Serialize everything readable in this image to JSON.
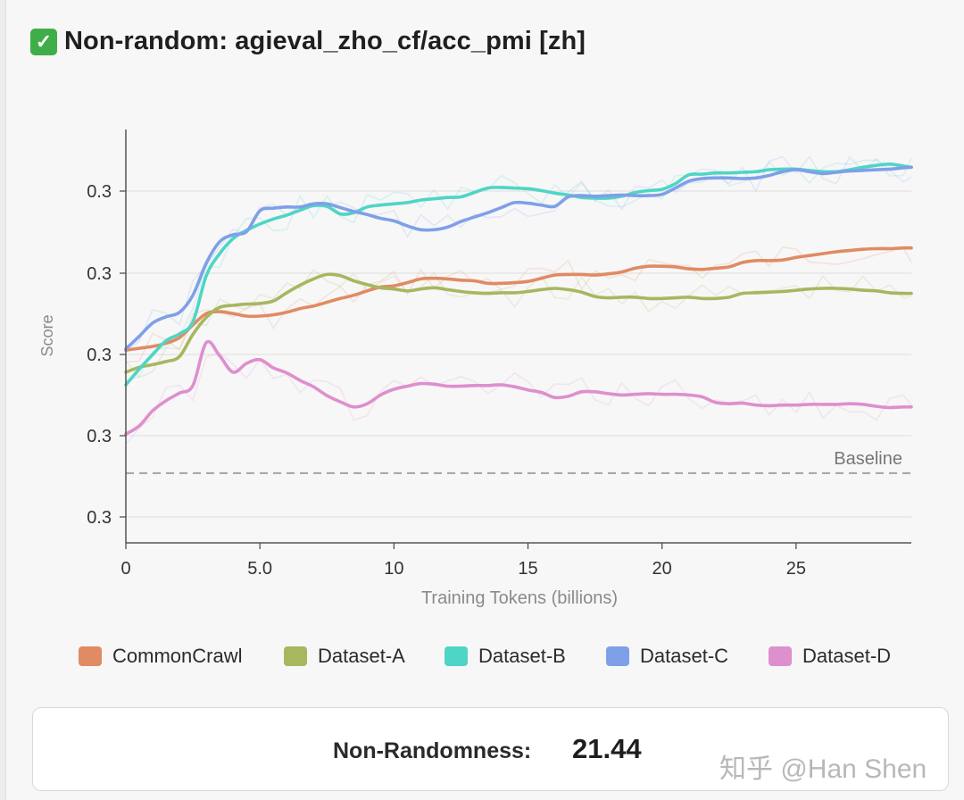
{
  "header": {
    "check_icon": "✓",
    "title": "Non-random: agieval_zho_cf/acc_pmi [zh]"
  },
  "chart_data": {
    "type": "line",
    "title": "Non-random: agieval_zho_cf/acc_pmi [zh]",
    "xlabel": "Training Tokens (billions)",
    "ylabel": "Score",
    "x_ticks": [
      "0",
      "5.0",
      "10",
      "15",
      "20",
      "25"
    ],
    "y_ticks": [
      "0.3",
      "0.3",
      "0.3",
      "0.3",
      "0.3"
    ],
    "xlim": [
      0,
      29.3
    ],
    "ylim": [
      0.2355,
      0.2975
    ],
    "grid": true,
    "legend_position": "bottom",
    "baseline": {
      "label": "Baseline",
      "value": 0.244
    },
    "x": [
      0,
      0.5,
      1,
      1.5,
      2,
      2.5,
      3,
      3.5,
      4,
      4.5,
      5,
      5.5,
      6,
      6.5,
      7,
      7.5,
      8,
      8.5,
      9,
      9.5,
      10,
      10.5,
      11,
      11.5,
      12,
      12.5,
      13,
      13.5,
      14,
      14.5,
      15,
      15.5,
      16,
      16.5,
      17,
      17.5,
      18,
      18.5,
      19,
      19.5,
      20,
      20.5,
      21,
      21.5,
      22,
      22.5,
      23,
      23.5,
      24,
      24.5,
      25,
      25.5,
      26,
      26.5,
      27,
      27.5,
      28,
      28.5,
      29,
      29.3
    ],
    "series": [
      {
        "name": "CommonCrawl",
        "color": "#e08b63",
        "values": [
          0.2635,
          0.2638,
          0.2641,
          0.2646,
          0.2655,
          0.2675,
          0.2693,
          0.2696,
          0.2693,
          0.2689,
          0.2689,
          0.2691,
          0.2695,
          0.2701,
          0.2705,
          0.2711,
          0.2717,
          0.2722,
          0.2729,
          0.2735,
          0.2737,
          0.2742,
          0.2748,
          0.2749,
          0.2748,
          0.2746,
          0.2745,
          0.2741,
          0.2741,
          0.2742,
          0.2744,
          0.2749,
          0.2754,
          0.2755,
          0.2755,
          0.2754,
          0.2756,
          0.2759,
          0.2765,
          0.2768,
          0.2768,
          0.2767,
          0.2764,
          0.2763,
          0.2765,
          0.2767,
          0.2774,
          0.2777,
          0.2777,
          0.2778,
          0.2782,
          0.2785,
          0.2788,
          0.2791,
          0.2793,
          0.2795,
          0.2796,
          0.2796,
          0.2797,
          0.2797
        ]
      },
      {
        "name": "Dataset-A",
        "color": "#a6b760",
        "values": [
          0.26,
          0.2608,
          0.2612,
          0.2617,
          0.2625,
          0.266,
          0.2687,
          0.2703,
          0.2706,
          0.2708,
          0.2709,
          0.2713,
          0.2726,
          0.2738,
          0.2748,
          0.2755,
          0.2753,
          0.2745,
          0.2739,
          0.2734,
          0.2732,
          0.2729,
          0.2732,
          0.2734,
          0.2731,
          0.2728,
          0.2726,
          0.2725,
          0.2726,
          0.2726,
          0.2728,
          0.2731,
          0.2733,
          0.2731,
          0.2727,
          0.272,
          0.2718,
          0.2719,
          0.2719,
          0.2717,
          0.2717,
          0.2718,
          0.2719,
          0.2717,
          0.2717,
          0.2719,
          0.2725,
          0.2726,
          0.2727,
          0.2728,
          0.273,
          0.2732,
          0.2733,
          0.2733,
          0.2732,
          0.273,
          0.2729,
          0.2726,
          0.2725,
          0.2725
        ]
      },
      {
        "name": "Dataset-B",
        "color": "#4fd5c5",
        "values": [
          0.258,
          0.2605,
          0.2628,
          0.265,
          0.2661,
          0.268,
          0.2753,
          0.2788,
          0.2812,
          0.2825,
          0.2835,
          0.2843,
          0.2849,
          0.2857,
          0.2864,
          0.2863,
          0.2851,
          0.2853,
          0.2862,
          0.2865,
          0.2867,
          0.2869,
          0.2873,
          0.2875,
          0.2877,
          0.2878,
          0.2885,
          0.2892,
          0.2893,
          0.2892,
          0.2891,
          0.2888,
          0.2884,
          0.2881,
          0.2877,
          0.2876,
          0.2876,
          0.2879,
          0.2885,
          0.2888,
          0.289,
          0.2899,
          0.2913,
          0.2914,
          0.2916,
          0.2916,
          0.2917,
          0.2918,
          0.2921,
          0.2922,
          0.2922,
          0.292,
          0.2918,
          0.2918,
          0.2921,
          0.2925,
          0.2928,
          0.293,
          0.2927,
          0.2925
        ]
      },
      {
        "name": "Dataset-C",
        "color": "#7fa0e8",
        "values": [
          0.2637,
          0.2657,
          0.2678,
          0.2688,
          0.2695,
          0.2722,
          0.2773,
          0.2807,
          0.2818,
          0.2823,
          0.2856,
          0.286,
          0.2862,
          0.2862,
          0.2867,
          0.2867,
          0.2861,
          0.2855,
          0.285,
          0.2844,
          0.284,
          0.2832,
          0.2826,
          0.2826,
          0.283,
          0.2839,
          0.2846,
          0.2853,
          0.2861,
          0.2869,
          0.2868,
          0.2865,
          0.2863,
          0.2878,
          0.288,
          0.2879,
          0.288,
          0.2881,
          0.288,
          0.288,
          0.2882,
          0.2892,
          0.2903,
          0.2907,
          0.2908,
          0.2908,
          0.2907,
          0.2908,
          0.2912,
          0.2918,
          0.2921,
          0.2918,
          0.2915,
          0.2917,
          0.2919,
          0.292,
          0.2921,
          0.2922,
          0.2924,
          0.2925
        ]
      },
      {
        "name": "Dataset-D",
        "color": "#de8fcd",
        "values": [
          0.2502,
          0.2515,
          0.2539,
          0.2555,
          0.2567,
          0.2579,
          0.2647,
          0.2626,
          0.26,
          0.2614,
          0.262,
          0.2607,
          0.2599,
          0.2587,
          0.2577,
          0.2563,
          0.2553,
          0.2545,
          0.255,
          0.2564,
          0.2573,
          0.2578,
          0.2582,
          0.2581,
          0.2578,
          0.2578,
          0.2579,
          0.2579,
          0.258,
          0.2577,
          0.2572,
          0.2568,
          0.256,
          0.2562,
          0.2569,
          0.2569,
          0.2566,
          0.2564,
          0.2565,
          0.2566,
          0.2565,
          0.2565,
          0.2564,
          0.2561,
          0.2552,
          0.255,
          0.2551,
          0.2548,
          0.2547,
          0.2548,
          0.2548,
          0.2549,
          0.2549,
          0.2549,
          0.255,
          0.2549,
          0.2546,
          0.2544,
          0.2545,
          0.2545
        ]
      }
    ]
  },
  "metric": {
    "label": "Non-Randomness:",
    "value": "21.44"
  },
  "watermark": "知乎 @Han Shen"
}
